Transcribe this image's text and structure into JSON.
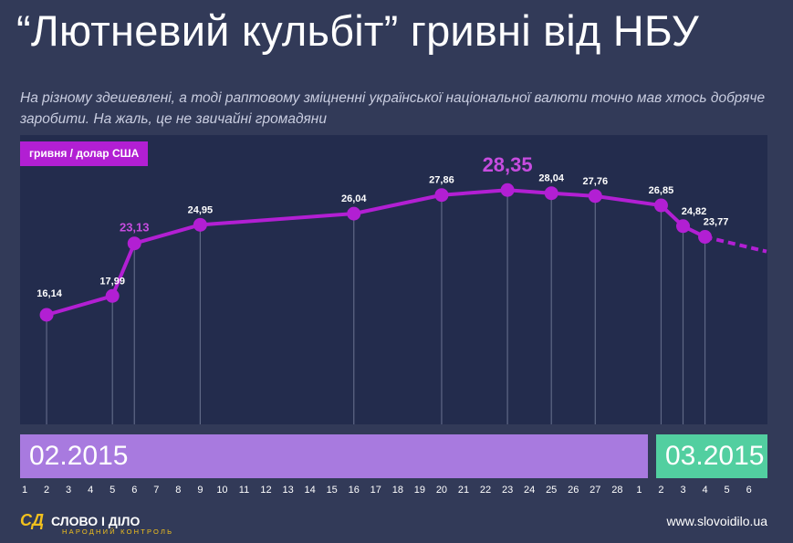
{
  "title": "“Лютневий кульбіт” гривні від НБУ",
  "subtitle": "На різному здешевлені, а тоді раптовому зміцненні української національної валюти точно мав хтось добряче заробити. На жаль, це не звичайні громадяни",
  "unit_tag": "гривня / долар США",
  "months": {
    "feb": "02.2015",
    "mar": "03.2015"
  },
  "footer": {
    "logo_mark": "СД",
    "logo_text": "СЛОВО І ДІЛО",
    "logo_tagline": "НАРОДНИЙ КОНТРОЛЬ",
    "url": "www.slovoidilo.ua"
  },
  "colors": {
    "background": "#323a58",
    "plot_area": "#232c4d",
    "line": "#b21fd3",
    "feb_bar": "#a87adf",
    "mar_bar": "#52cfa0",
    "highlight_label": "#c64cdf"
  },
  "chart_data": {
    "type": "line",
    "title": "“Лютневий кульбіт” гривні від НБУ",
    "ylabel": "гривня / долар США",
    "x_ticks": [
      "1",
      "2",
      "3",
      "4",
      "5",
      "6",
      "7",
      "8",
      "9",
      "10",
      "11",
      "12",
      "13",
      "14",
      "15",
      "16",
      "17",
      "18",
      "19",
      "20",
      "21",
      "22",
      "23",
      "24",
      "25",
      "26",
      "27",
      "28",
      "1",
      "2",
      "3",
      "4",
      "5",
      "6"
    ],
    "points": [
      {
        "date": "2015-02-02",
        "value": 16.14,
        "label": "16,14"
      },
      {
        "date": "2015-02-05",
        "value": 17.99,
        "label": "17,99"
      },
      {
        "date": "2015-02-06",
        "value": 23.13,
        "label": "23,13"
      },
      {
        "date": "2015-02-09",
        "value": 24.95,
        "label": "24,95"
      },
      {
        "date": "2015-02-16",
        "value": 26.04,
        "label": "26,04"
      },
      {
        "date": "2015-02-20",
        "value": 27.86,
        "label": "27,86"
      },
      {
        "date": "2015-02-23",
        "value": 28.35,
        "label": "28,35"
      },
      {
        "date": "2015-02-25",
        "value": 28.04,
        "label": "28,04"
      },
      {
        "date": "2015-02-27",
        "value": 27.76,
        "label": "27,76"
      },
      {
        "date": "2015-03-02",
        "value": 26.85,
        "label": "26,85"
      },
      {
        "date": "2015-03-03",
        "value": 24.82,
        "label": "24,82"
      },
      {
        "date": "2015-03-04",
        "value": 23.77,
        "label": "23,77"
      }
    ],
    "projection": "dashed trend line after 2015-03-04",
    "highlighted": [
      "2015-02-06",
      "2015-02-23"
    ]
  }
}
